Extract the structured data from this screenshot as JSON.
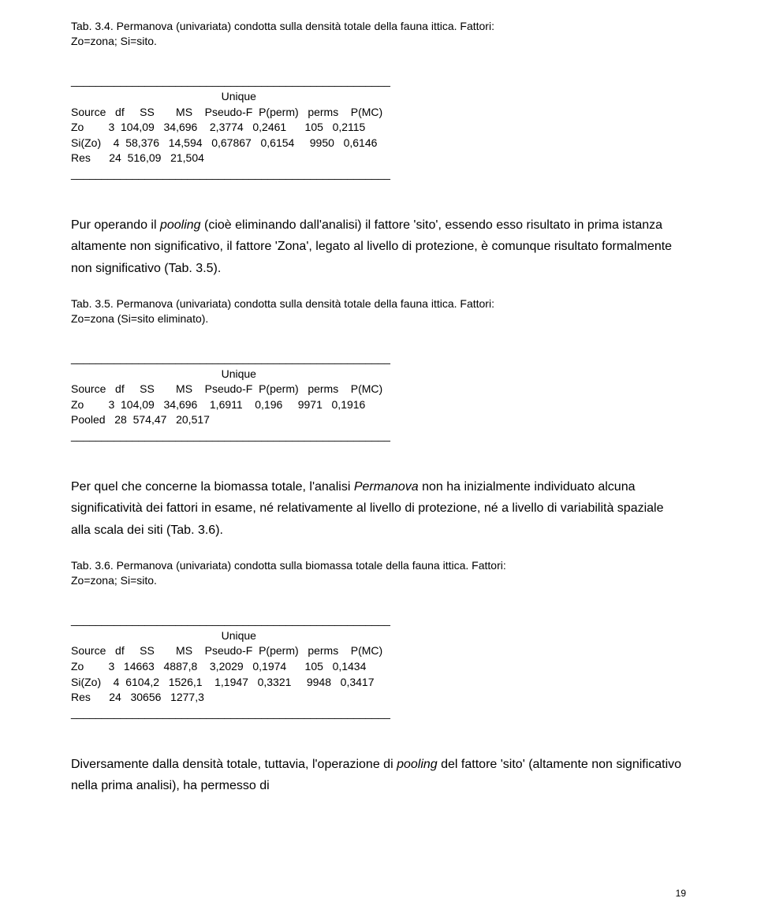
{
  "caption34": {
    "line1": "Tab. 3.4. Permanova (univariata) condotta sulla densità totale della fauna ittica. Fattori:",
    "line2": "Zo=zona; Si=sito."
  },
  "table34": {
    "rule": "____________________________________________________",
    "uniqueLabel": "                                                 Unique",
    "header": "Source   df     SS       MS    Pseudo-F  P(perm)   perms    P(MC)",
    "row1": "Zo        3  104,09   34,696    2,3774   0,2461      105   0,2115",
    "row2": "Si(Zo)    4  58,376   14,594   0,67867   0,6154     9950   0,6146",
    "row3": "Res      24  516,09   21,504"
  },
  "para1": "Pur operando il pooling (cioè eliminando dall'analisi) il fattore 'sito', essendo esso risultato in prima istanza altamente non significativo, il fattore 'Zona', legato al livello di protezione, è comunque risultato formalmente non significativo (Tab. 3.5).",
  "caption35": {
    "line1": "Tab. 3.5. Permanova (univariata) condotta sulla densità totale della fauna ittica. Fattori:",
    "line2": "Zo=zona (Si=sito eliminato)."
  },
  "table35": {
    "rule": "____________________________________________________",
    "uniqueLabel": "                                                 Unique",
    "header": "Source   df     SS       MS    Pseudo-F  P(perm)   perms    P(MC)",
    "row1": "Zo        3  104,09   34,696    1,6911    0,196     9971   0,1916",
    "row2": "Pooled   28  574,47   20,517"
  },
  "para2": "Per quel che concerne la biomassa totale, l'analisi Permanova non ha inizialmente individuato alcuna significatività dei fattori in esame, né relativamente al livello di protezione, né a livello di variabilità spaziale alla scala dei siti (Tab. 3.6).",
  "caption36": {
    "line1": "Tab. 3.6. Permanova (univariata) condotta sulla biomassa totale della fauna ittica. Fattori:",
    "line2": "Zo=zona; Si=sito."
  },
  "table36": {
    "rule": "____________________________________________________",
    "uniqueLabel": "                                                 Unique",
    "header": "Source   df     SS       MS    Pseudo-F  P(perm)   perms    P(MC)",
    "row1": "Zo        3   14663   4887,8    3,2029   0,1974      105   0,1434",
    "row2": "Si(Zo)    4  6104,2   1526,1    1,1947   0,3321     9948   0,3417",
    "row3": "Res      24   30656   1277,3"
  },
  "para3": "Diversamente dalla densità totale, tuttavia, l'operazione di pooling del fattore 'sito' (altamente non significativo nella prima analisi), ha permesso di",
  "pageNumber": "19",
  "italicTerms": {
    "pooling": "pooling",
    "permanova": "Permanova"
  }
}
